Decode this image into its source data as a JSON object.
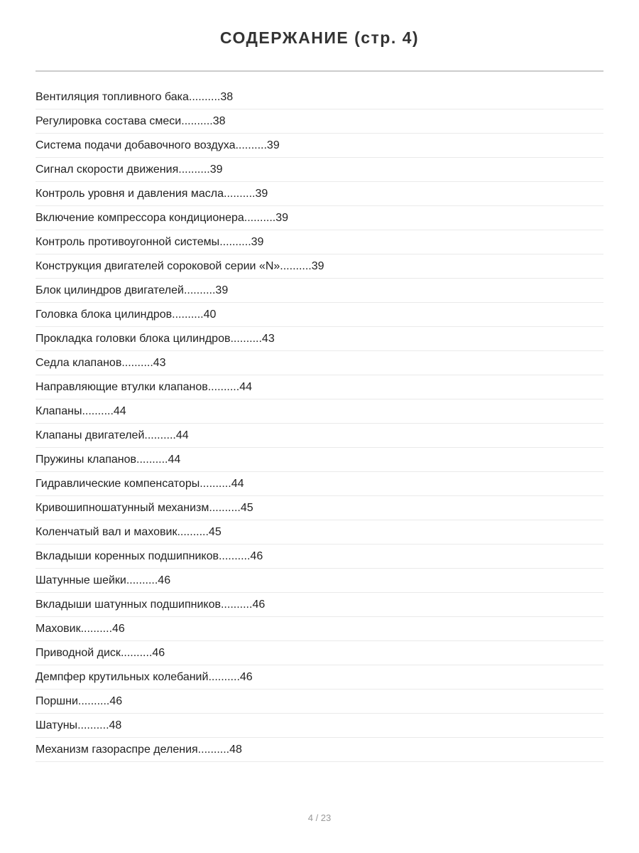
{
  "title": "СОДЕРЖАНИЕ (стр. 4)",
  "entries": [
    {
      "text": "Вентиляция топливного бака",
      "page": "38"
    },
    {
      "text": "Регулировка состава смеси",
      "page": "38"
    },
    {
      "text": "Система подачи добавочного воздуха",
      "page": "39"
    },
    {
      "text": "Сигнал скорости движения",
      "page": "39"
    },
    {
      "text": "Контроль уровня и давления масла",
      "page": "39"
    },
    {
      "text": "Включение компрессора кондиционера",
      "page": "39"
    },
    {
      "text": "Контроль противоугонной системы",
      "page": "39"
    },
    {
      "text": "Конструкция двигателей сороковой серии «N»",
      "page": "39"
    },
    {
      "text": "Блок цилиндров двигателей",
      "page": "39"
    },
    {
      "text": "Головка блока цилиндров",
      "page": "40"
    },
    {
      "text": "Прокладка головки блока цилиндров",
      "page": "43"
    },
    {
      "text": "Седла клапанов",
      "page": "43"
    },
    {
      "text": "Направляющие втулки клапанов",
      "page": "44"
    },
    {
      "text": "Клапаны",
      "page": "44"
    },
    {
      "text": "Клапаны двигателей",
      "page": "44"
    },
    {
      "text": "Пружины клапанов",
      "page": "44"
    },
    {
      "text": "Гидравлические компенсаторы",
      "page": "44"
    },
    {
      "text": "Кривошипношатунный механизм",
      "page": "45"
    },
    {
      "text": "Коленчатый вал и маховик",
      "page": "45"
    },
    {
      "text": "Вкладыши коренных подшипников",
      "page": "46"
    },
    {
      "text": "Шатунные шейки",
      "page": "46"
    },
    {
      "text": "Вкладыши шатунных подшипников",
      "page": "46"
    },
    {
      "text": "Маховик",
      "page": "46"
    },
    {
      "text": "Приводной диск",
      "page": "46"
    },
    {
      "text": "Демпфер крутильных колебаний",
      "page": "46"
    },
    {
      "text": "Поршни",
      "page": "46"
    },
    {
      "text": "Шатуны",
      "page": "48"
    },
    {
      "text": "Механизм газораспре деления",
      "page": "48"
    }
  ],
  "leader": "..........",
  "footer": "4 / 23"
}
